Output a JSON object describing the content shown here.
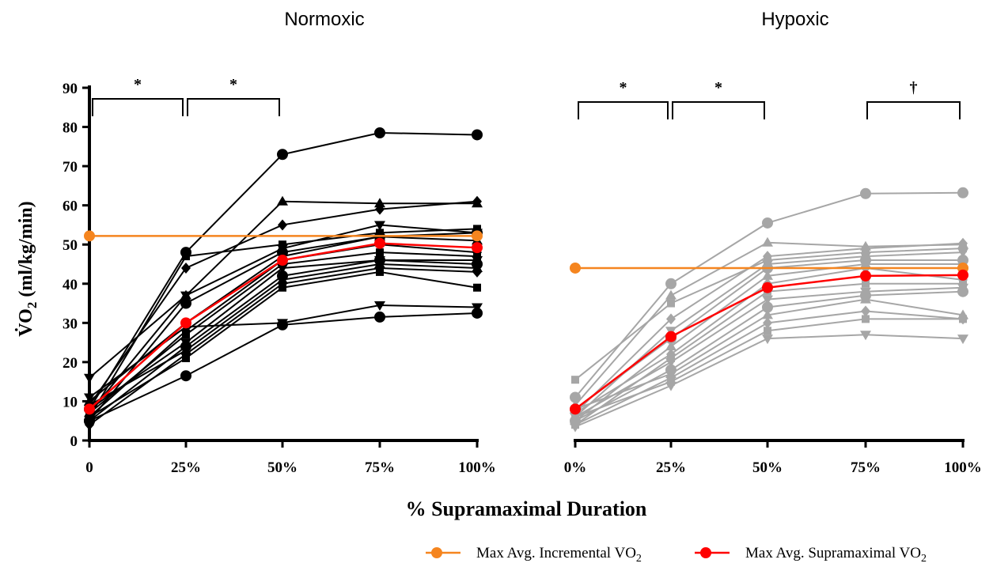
{
  "chart_data": [
    {
      "type": "line",
      "panel": "left",
      "title": "Normoxic",
      "x": [
        "0",
        "25%",
        "50%",
        "75%",
        "100%"
      ],
      "ylim": [
        0,
        90
      ],
      "yticks": [
        0,
        10,
        20,
        30,
        40,
        50,
        60,
        70,
        80,
        90
      ],
      "ylabel": "V̇O2 (ml/kg/min)",
      "individual_color": "#000000",
      "individuals": [
        [
          8,
          48,
          73,
          78.5,
          78
        ],
        [
          7,
          37,
          61,
          60.5,
          60.5
        ],
        [
          9,
          44,
          55,
          59,
          61
        ],
        [
          6,
          47,
          50,
          53,
          54
        ],
        [
          16,
          37,
          49,
          55,
          53
        ],
        [
          5,
          35,
          48,
          52,
          53
        ],
        [
          10,
          30,
          47,
          52,
          51
        ],
        [
          6,
          28,
          46,
          50,
          48
        ],
        [
          7,
          27,
          45,
          48,
          47
        ],
        [
          8,
          25,
          44,
          46,
          46
        ],
        [
          5,
          24,
          42,
          46,
          45
        ],
        [
          9,
          23,
          41,
          45,
          44
        ],
        [
          4,
          22,
          40,
          44,
          43
        ],
        [
          6,
          21,
          39,
          43,
          39
        ],
        [
          11,
          29,
          30,
          34.5,
          34
        ],
        [
          5,
          16.5,
          29.5,
          31.5,
          32.5
        ]
      ],
      "series": [
        {
          "name": "Max Avg. Incremental VO2",
          "color": "#F5851F",
          "values": [
            52.2,
            52.2,
            52.2,
            52.2,
            52.2
          ]
        },
        {
          "name": "Max Avg. Supramaximal VO2",
          "color": "#FF0000",
          "values": [
            8,
            30,
            46,
            50.3,
            49.2
          ]
        }
      ],
      "significance": [
        {
          "from": 0,
          "to": 1,
          "label": "*"
        },
        {
          "from": 1,
          "to": 2,
          "label": "*"
        }
      ]
    },
    {
      "type": "line",
      "panel": "right",
      "title": "Hypoxic",
      "x": [
        "0%",
        "25%",
        "50%",
        "75%",
        "100%"
      ],
      "ylim": [
        0,
        90
      ],
      "individual_color": "#A6A6A6",
      "individuals": [
        [
          11,
          40,
          55.5,
          63,
          63.2
        ],
        [
          9,
          37,
          50.5,
          49.5,
          50
        ],
        [
          7,
          31,
          47,
          49,
          50.3
        ],
        [
          15.5,
          35,
          46,
          48,
          49
        ],
        [
          6,
          28,
          45,
          47,
          48
        ],
        [
          8,
          26,
          44,
          46,
          46
        ],
        [
          5,
          24,
          42,
          45,
          45
        ],
        [
          7,
          22,
          40,
          44,
          41
        ],
        [
          4,
          21,
          38,
          40,
          40
        ],
        [
          6,
          20,
          36,
          38,
          39
        ],
        [
          5,
          18,
          34,
          37,
          38
        ],
        [
          8,
          17,
          32,
          36,
          32
        ],
        [
          4,
          16,
          30,
          33,
          31
        ],
        [
          6,
          15,
          28,
          31,
          31
        ],
        [
          3.5,
          14,
          26,
          27,
          26
        ]
      ],
      "series": [
        {
          "name": "Max Avg. Incremental VO2",
          "color": "#F5851F",
          "values": [
            44,
            44,
            44,
            44,
            44
          ]
        },
        {
          "name": "Max Avg. Supramaximal VO2",
          "color": "#FF0000",
          "values": [
            8,
            26.5,
            39,
            42,
            42.2
          ]
        }
      ],
      "significance": [
        {
          "from": 0,
          "to": 1,
          "label": "*"
        },
        {
          "from": 1,
          "to": 2,
          "label": "*"
        },
        {
          "from": 3,
          "to": 4,
          "label": "†"
        }
      ]
    }
  ],
  "xlabel": "% Supramaximal Duration",
  "legend": {
    "placement": "bottom-right",
    "items": [
      {
        "label": "Max Avg. Incremental VO2",
        "color": "#F5851F"
      },
      {
        "label": "Max Avg. Supramaximal VO2",
        "color": "#FF0000"
      }
    ]
  }
}
